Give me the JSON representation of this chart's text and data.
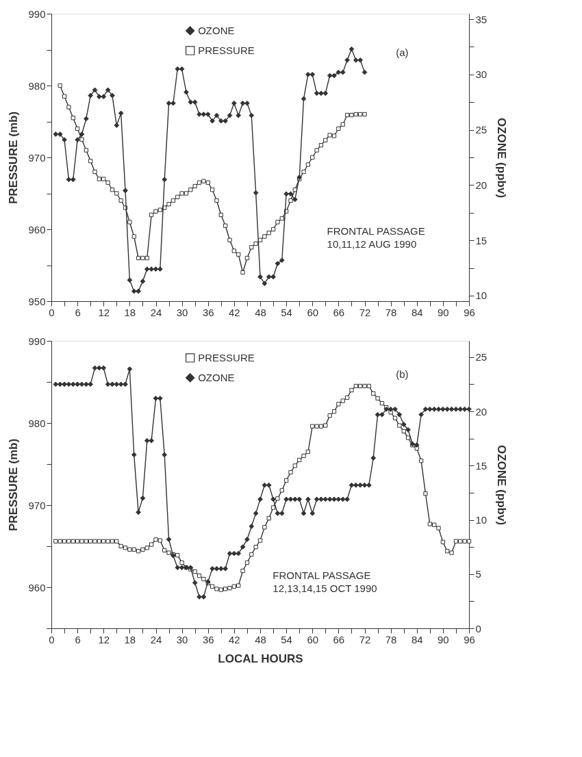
{
  "chart_data": [
    {
      "type": "line",
      "xlabel": null,
      "ylabel": "PRESSURE (mb)",
      "y2label": "OZONE (ppbv)",
      "x": [
        1,
        2,
        3,
        4,
        5,
        6,
        7,
        8,
        9,
        10,
        11,
        12,
        13,
        14,
        15,
        16,
        17,
        18,
        19,
        20,
        21,
        22,
        23,
        24,
        25,
        26,
        27,
        28,
        29,
        30,
        31,
        32,
        33,
        34,
        35,
        36,
        37,
        38,
        39,
        40,
        41,
        42,
        43,
        44,
        45,
        46,
        47,
        48,
        49,
        50,
        51,
        52,
        53,
        54,
        55,
        56,
        57,
        58,
        59,
        60,
        61,
        62,
        63,
        64,
        65,
        66,
        67,
        68,
        69,
        70,
        71,
        72
      ],
      "series": [
        {
          "name": "OZONE",
          "color": "#333333",
          "axis": "y2",
          "marker": "diamond",
          "values": [
            24.6,
            24.6,
            24.1,
            20.5,
            20.5,
            24.1,
            24.6,
            26,
            28.1,
            28.6,
            28,
            28,
            28.6,
            28.1,
            25.4,
            26.5,
            19.5,
            11.4,
            10.4,
            10.4,
            11.3,
            12.4,
            12.4,
            12.4,
            12.4,
            20.5,
            27.4,
            27.4,
            30.5,
            30.5,
            28.4,
            27.5,
            27.5,
            26.4,
            26.4,
            26.4,
            25.8,
            26.3,
            25.8,
            25.8,
            26.3,
            27.4,
            26.3,
            27.4,
            27.4,
            26.3,
            19.3,
            11.7,
            11.1,
            11.7,
            11.7,
            12.9,
            13.2,
            19.2,
            19.2,
            18.7,
            20.7,
            27.8,
            30,
            30,
            28.3,
            28.3,
            28.3,
            29.9,
            29.9,
            30.2,
            30.2,
            31.3,
            32.3,
            31.3,
            31.3,
            30.2
          ]
        },
        {
          "name": "PRESSURE",
          "color": "#333333",
          "axis": "y",
          "marker": "square",
          "x": [
            2,
            3,
            4,
            5,
            6,
            7,
            8,
            9,
            10,
            11,
            12,
            13,
            14,
            15,
            16,
            17,
            18,
            19,
            20,
            21,
            22,
            23,
            24,
            25,
            26,
            27,
            28,
            29,
            30,
            31,
            32,
            33,
            34,
            35,
            36,
            37,
            38,
            39,
            40,
            41,
            42,
            43,
            44,
            45,
            46,
            47,
            48,
            49,
            50,
            51,
            52,
            53,
            54,
            55,
            56,
            57,
            58,
            59,
            60,
            61,
            62,
            63,
            64,
            65,
            66,
            67,
            68,
            69,
            70,
            71,
            72
          ],
          "values": [
            980,
            978.5,
            977,
            975.5,
            974,
            972.5,
            971,
            969.5,
            968,
            967,
            967,
            966.5,
            965.5,
            965,
            964,
            963,
            961,
            959,
            956,
            956,
            956,
            962,
            962.5,
            962.7,
            963,
            963.5,
            964,
            964.5,
            965,
            965,
            965.5,
            966,
            966.5,
            966.7,
            966.5,
            965.5,
            964,
            962,
            960.5,
            958.5,
            957,
            956.5,
            954,
            956,
            957.5,
            958,
            958.5,
            959,
            959.5,
            960,
            961,
            961.5,
            962.5,
            964,
            965.5,
            967,
            968,
            969,
            970,
            971,
            971.7,
            972.4,
            973.1,
            973,
            974,
            974.6,
            975.9,
            975.9,
            976,
            976,
            976
          ]
        }
      ],
      "xlim": [
        0,
        96
      ],
      "xticks": [
        0,
        {
          "value": 3,
          "label": null
        },
        6,
        {
          "value": 9,
          "label": null
        },
        12,
        {
          "value": 15,
          "label": null
        },
        18,
        {
          "value": 21,
          "label": null
        },
        24,
        {
          "value": 27,
          "label": null
        },
        30,
        {
          "value": 33,
          "label": null
        },
        36,
        {
          "value": 39,
          "label": null
        },
        42,
        {
          "value": 45,
          "label": null
        },
        48,
        {
          "value": 51,
          "label": null
        },
        54,
        {
          "value": 57,
          "label": null
        },
        60,
        {
          "value": 63,
          "label": null
        },
        66,
        {
          "value": 69,
          "label": null
        },
        72,
        {
          "value": 75,
          "label": null
        },
        78,
        {
          "value": 81,
          "label": null
        },
        84,
        {
          "value": 87,
          "label": null
        },
        90,
        {
          "value": 93,
          "label": null
        },
        96
      ],
      "ylim": [
        950,
        990
      ],
      "yticks": [
        950,
        {
          "value": 955,
          "label": null
        },
        960,
        {
          "value": 965,
          "label": null
        },
        970,
        {
          "value": 975,
          "label": null
        },
        980,
        {
          "value": 985,
          "label": null
        },
        990
      ],
      "y2lim": [
        9.5,
        35.5
      ],
      "y2ticks": [
        10,
        {
          "value": 12.5,
          "label": null
        },
        15,
        {
          "value": 17.5,
          "label": null
        },
        20,
        {
          "value": 22.5,
          "label": null
        },
        25,
        {
          "value": 27.5,
          "label": null
        },
        30,
        {
          "value": 32.5,
          "label": null
        },
        35
      ],
      "legend": "top",
      "line_style": "solid",
      "grid": false,
      "annotations": [
        "(a)",
        "FRONTAL PASSAGE\n10,11,12 AUG 1990"
      ]
    },
    {
      "type": "line",
      "xlabel": "LOCAL HOURS",
      "ylabel": "PRESSURE (mb)",
      "y2label": "OZONE (ppbv)",
      "x": [
        1,
        2,
        3,
        4,
        5,
        6,
        7,
        8,
        9,
        10,
        11,
        12,
        13,
        14,
        15,
        16,
        17,
        18,
        19,
        20,
        21,
        22,
        23,
        24,
        25,
        26,
        27,
        28,
        29,
        30,
        31,
        32,
        33,
        34,
        35,
        36,
        37,
        38,
        39,
        40,
        41,
        42,
        43,
        44,
        45,
        46,
        47,
        48,
        49,
        50,
        51,
        52,
        53,
        54,
        55,
        56,
        57,
        58,
        59,
        60,
        61,
        62,
        63,
        64,
        65,
        66,
        67,
        68,
        69,
        70,
        71,
        72,
        73,
        74,
        75,
        76,
        77,
        78,
        79,
        80,
        81,
        82,
        83,
        84,
        85,
        86,
        87,
        88,
        89,
        90,
        91,
        92,
        93,
        94,
        95,
        96
      ],
      "series": [
        {
          "name": "PRESSURE",
          "color": "#333333",
          "axis": "y",
          "marker": "square",
          "values": [
            965.6,
            965.6,
            965.6,
            965.6,
            965.6,
            965.6,
            965.6,
            965.6,
            965.6,
            965.6,
            965.6,
            965.6,
            965.6,
            965.6,
            965.6,
            965,
            964.8,
            964.6,
            964.6,
            964.4,
            964.6,
            964.8,
            965.2,
            965.8,
            965.7,
            964.5,
            964.2,
            964,
            963.9,
            963,
            962.4,
            962.2,
            961.9,
            961.4,
            961,
            960.5,
            960.1,
            959.8,
            959.7,
            959.8,
            959.9,
            960.1,
            960.2,
            962,
            963,
            964,
            964.9,
            965.7,
            967.3,
            968.4,
            969.7,
            970.8,
            971.8,
            973,
            974,
            974.8,
            975.5,
            976,
            976.5,
            979.6,
            979.6,
            979.6,
            979.7,
            980.9,
            981.4,
            982.3,
            982.7,
            983.1,
            984,
            984.5,
            984.5,
            984.5,
            984.5,
            983.6,
            983,
            982.4,
            981.9,
            981.3,
            980.6,
            979.7,
            979,
            978.2,
            977.3,
            976.9,
            975.4,
            971.4,
            967.7,
            967.6,
            967.2,
            965.5,
            964.4,
            964.2,
            965.6,
            965.6,
            965.6,
            965.6
          ]
        },
        {
          "name": "OZONE",
          "color": "#333333",
          "axis": "y2",
          "marker": "diamond",
          "values": [
            22.5,
            22.5,
            22.5,
            22.5,
            22.5,
            22.5,
            22.5,
            22.5,
            22.5,
            24,
            24,
            24,
            22.5,
            22.5,
            22.5,
            22.5,
            22.5,
            23.9,
            16,
            10.7,
            12,
            17.3,
            17.3,
            21.2,
            21.2,
            16,
            8.2,
            6.7,
            5.6,
            5.6,
            5.6,
            5.6,
            4.2,
            2.9,
            2.9,
            4.3,
            5.5,
            5.5,
            5.5,
            5.5,
            6.9,
            6.9,
            6.9,
            7.5,
            8.2,
            9.4,
            10.6,
            11.9,
            13.2,
            13.2,
            11.9,
            10.6,
            10.6,
            11.9,
            11.9,
            11.9,
            11.9,
            10.6,
            11.9,
            10.6,
            11.9,
            11.9,
            11.9,
            11.9,
            11.9,
            11.9,
            11.9,
            11.9,
            13.2,
            13.2,
            13.2,
            13.2,
            13.2,
            15.7,
            19.7,
            19.7,
            20.2,
            20.2,
            20.2,
            19.7,
            18.8,
            18.3,
            17,
            16.9,
            19.7,
            20.2,
            20.2,
            20.2,
            20.2,
            20.2,
            20.2,
            20.2,
            20.2,
            20.2,
            20.2,
            20.2
          ]
        }
      ],
      "xlim": [
        0,
        96
      ],
      "xticks": [
        0,
        {
          "value": 3,
          "label": null
        },
        6,
        {
          "value": 9,
          "label": null
        },
        12,
        {
          "value": 15,
          "label": null
        },
        18,
        {
          "value": 21,
          "label": null
        },
        24,
        {
          "value": 27,
          "label": null
        },
        30,
        {
          "value": 33,
          "label": null
        },
        36,
        {
          "value": 39,
          "label": null
        },
        42,
        {
          "value": 45,
          "label": null
        },
        48,
        {
          "value": 51,
          "label": null
        },
        54,
        {
          "value": 57,
          "label": null
        },
        60,
        {
          "value": 63,
          "label": null
        },
        66,
        {
          "value": 69,
          "label": null
        },
        72,
        {
          "value": 75,
          "label": null
        },
        78,
        {
          "value": 81,
          "label": null
        },
        84,
        {
          "value": 87,
          "label": null
        },
        90,
        {
          "value": 93,
          "label": null
        },
        96
      ],
      "ylim": [
        955,
        990
      ],
      "yticks": [
        {
          "value": 955,
          "label": null
        },
        960,
        {
          "value": 965,
          "label": null
        },
        970,
        {
          "value": 975,
          "label": null
        },
        980,
        {
          "value": 985,
          "label": null
        },
        990
      ],
      "y2lim": [
        0,
        26.5
      ],
      "y2ticks": [
        0,
        {
          "value": 2.5,
          "label": null
        },
        5,
        {
          "value": 7.5,
          "label": null
        },
        10,
        {
          "value": 12.5,
          "label": null
        },
        15,
        {
          "value": 17.5,
          "label": null
        },
        20,
        {
          "value": 22.5,
          "label": null
        },
        25
      ],
      "legend": "top",
      "line_style": "solid",
      "grid": false,
      "annotations": [
        "(b)",
        "FRONTAL PASSAGE\n12,13,14,15 OCT 1990"
      ]
    }
  ]
}
